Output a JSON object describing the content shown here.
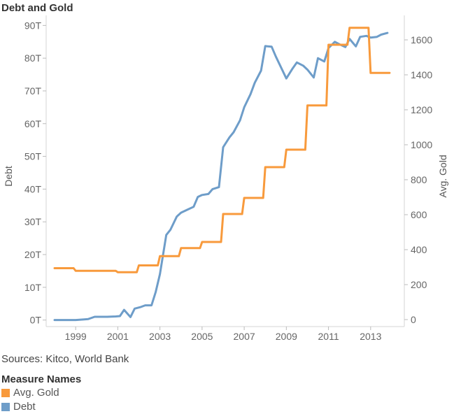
{
  "chart_data": {
    "type": "line",
    "title": "Debt and Gold",
    "ylabel": "Debt",
    "y2label": "Avg. Gold",
    "sources": "Sources: Kitco, World Bank",
    "legend": {
      "title": "Measure Names",
      "placement": "bottom-left",
      "entries": [
        {
          "name": "Avg. Gold",
          "color": "#f89a3c"
        },
        {
          "name": "Debt",
          "color": "#6e9dc9"
        }
      ]
    },
    "xlim": [
      1997.6,
      2014.6
    ],
    "x_ticks": [
      "1999",
      "2001",
      "2003",
      "2005",
      "2007",
      "2009",
      "2011",
      "2013"
    ],
    "ylim": [
      -2,
      92
    ],
    "y_ticks": [
      "0T",
      "10T",
      "20T",
      "30T",
      "40T",
      "50T",
      "60T",
      "70T",
      "80T",
      "90T"
    ],
    "y2lim": [
      -40,
      1720
    ],
    "y2_ticks": [
      "0",
      "200",
      "400",
      "600",
      "800",
      "1000",
      "1200",
      "1400",
      "1600"
    ],
    "grid": false,
    "series": [
      {
        "name": "Debt",
        "axis": "left",
        "color": "#6e9dc9",
        "x": [
          1998.0,
          1999.0,
          1999.4,
          1999.6,
          1999.9,
          2000.2,
          2000.5,
          2000.9,
          2001.1,
          2001.3,
          2001.6,
          2001.8,
          2002.1,
          2002.3,
          2002.6,
          2002.8,
          2003.0,
          2003.3,
          2003.5,
          2003.8,
          2004.0,
          2004.3,
          2004.6,
          2004.8,
          2005.0,
          2005.3,
          2005.5,
          2005.8,
          2006.0,
          2006.3,
          2006.5,
          2006.8,
          2007.0,
          2007.3,
          2007.5,
          2007.8,
          2008.0,
          2008.3,
          2008.5,
          2008.8,
          2009.0,
          2009.3,
          2009.5,
          2009.8,
          2010.0,
          2010.3,
          2010.5,
          2010.8,
          2011.0,
          2011.3,
          2011.5,
          2011.8,
          2012.0,
          2012.3,
          2012.5,
          2012.8,
          2013.0,
          2013.3,
          2013.5,
          2013.8
        ],
        "y": [
          0.0,
          0.0,
          0.2,
          0.3,
          1.0,
          1.0,
          1.0,
          1.1,
          1.2,
          3.1,
          0.9,
          3.5,
          4.0,
          4.5,
          4.5,
          8.6,
          14.0,
          26.0,
          27.6,
          31.6,
          32.8,
          33.7,
          34.6,
          37.6,
          38.2,
          38.5,
          40.0,
          40.6,
          52.8,
          55.8,
          57.4,
          61.0,
          65.0,
          69.0,
          72.5,
          76.2,
          83.7,
          83.5,
          80.5,
          76.5,
          73.8,
          76.9,
          78.7,
          77.7,
          76.5,
          74.1,
          80.0,
          79.0,
          83.1,
          85.0,
          84.3,
          83.4,
          85.9,
          83.6,
          86.5,
          86.8,
          86.3,
          86.5,
          87.2,
          87.7
        ]
      },
      {
        "name": "Avg. Gold",
        "axis": "right",
        "color": "#f89a3c",
        "x": [
          1998.0,
          1998.9,
          1999.0,
          1999.9,
          2000.0,
          2000.9,
          2001.0,
          2001.9,
          2002.0,
          2002.9,
          2003.0,
          2003.9,
          2004.0,
          2004.9,
          2005.0,
          2005.9,
          2006.0,
          2006.9,
          2007.0,
          2007.9,
          2008.0,
          2008.9,
          2009.0,
          2009.9,
          2010.0,
          2010.9,
          2011.0,
          2011.9,
          2012.0,
          2012.9,
          2013.0,
          2013.9
        ],
        "y": [
          294,
          294,
          279,
          279,
          279,
          279,
          271,
          271,
          310,
          310,
          363,
          363,
          409,
          409,
          444,
          444,
          604,
          604,
          696,
          696,
          872,
          872,
          972,
          972,
          1225,
          1225,
          1572,
          1572,
          1669,
          1669,
          1411,
          1411
        ]
      }
    ]
  }
}
